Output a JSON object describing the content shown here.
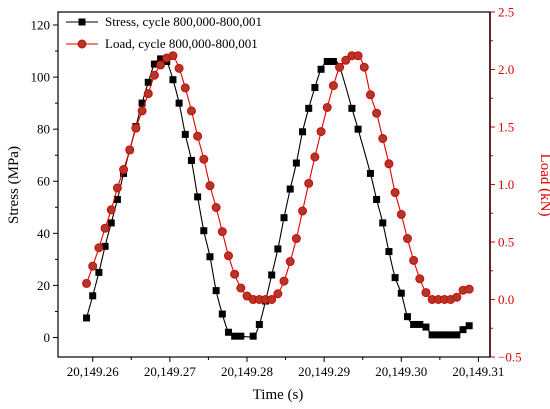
{
  "colors": {
    "stress": "#000000",
    "load": "#e00000",
    "load_marker_fill": "#a83b2b",
    "frame": "#000000"
  },
  "chart_data": {
    "type": "line",
    "xlabel": "Time (s)",
    "ylabel": "Stress (MPa)",
    "y2label": "Load (kN)",
    "xlim": [
      20149.2555,
      20149.3115
    ],
    "ylim": [
      -7.5,
      125
    ],
    "y2lim": [
      -0.5,
      2.5
    ],
    "x_ticks": [
      20149.26,
      20149.27,
      20149.28,
      20149.29,
      20149.3,
      20149.31
    ],
    "x_tick_labels": [
      "20,149.26",
      "20,149.27",
      "20,149.28",
      "20,149.29",
      "20,149.30",
      "20,149.31"
    ],
    "y_ticks": [
      0,
      20,
      40,
      60,
      80,
      100,
      120
    ],
    "y_tick_labels": [
      "0",
      "20",
      "40",
      "60",
      "80",
      "100",
      "120"
    ],
    "y2_ticks": [
      -0.5,
      0.0,
      0.5,
      1.0,
      1.5,
      2.0,
      2.5
    ],
    "y2_tick_labels": [
      "−0.5",
      "0.0",
      "0.5",
      "1.0",
      "1.5",
      "2.0",
      "2.5"
    ],
    "legend_position": "top-left",
    "grid": false,
    "series": [
      {
        "name": "Stress, cycle 800,000-800,001",
        "axis": "left",
        "marker": "square",
        "x": [
          20149.2592,
          20149.26,
          20149.2608,
          20149.2616,
          20149.2624,
          20149.2632,
          20149.264,
          20149.2648,
          20149.2656,
          20149.2664,
          20149.2672,
          20149.268,
          20149.2688,
          20149.2696,
          20149.2704,
          20149.2712,
          20149.272,
          20149.2728,
          20149.2736,
          20149.2744,
          20149.2752,
          20149.276,
          20149.2768,
          20149.2776,
          20149.2784,
          20149.2792,
          20149.2808,
          20149.2816,
          20149.2824,
          20149.2832,
          20149.284,
          20149.2848,
          20149.2856,
          20149.2864,
          20149.2872,
          20149.288,
          20149.2888,
          20149.2896,
          20149.2904,
          20149.2912,
          20149.292,
          20149.2936,
          20149.2944,
          20149.296,
          20149.2968,
          20149.2976,
          20149.2984,
          20149.2992,
          20149.3,
          20149.3008,
          20149.3016,
          20149.3024,
          20149.3032,
          20149.304,
          20149.3048,
          20149.3056,
          20149.3064,
          20149.3072,
          20149.308,
          20149.3088
        ],
        "values": [
          7.5,
          16,
          25,
          35,
          44,
          53,
          63,
          72,
          81,
          90,
          98,
          105,
          107,
          106,
          99,
          90,
          78,
          68,
          54,
          41,
          31,
          18,
          9,
          2,
          0.5,
          0.5,
          0.5,
          5,
          14,
          24,
          34,
          46,
          57,
          67,
          79,
          88,
          96,
          103,
          106,
          106,
          104,
          88,
          80,
          63,
          53,
          44,
          33,
          23,
          17,
          8,
          5,
          5,
          4,
          1,
          1,
          1,
          1,
          1,
          3,
          4.5
        ]
      },
      {
        "name": "Load, cycle 800,000-800,001",
        "axis": "right",
        "marker": "circle",
        "x": [
          20149.2592,
          20149.26,
          20149.2608,
          20149.2616,
          20149.2624,
          20149.2632,
          20149.264,
          20149.2648,
          20149.2656,
          20149.2664,
          20149.2672,
          20149.268,
          20149.2688,
          20149.2696,
          20149.2704,
          20149.2712,
          20149.272,
          20149.2728,
          20149.2736,
          20149.2744,
          20149.2752,
          20149.276,
          20149.2768,
          20149.2776,
          20149.2784,
          20149.2792,
          20149.28,
          20149.2808,
          20149.2816,
          20149.2824,
          20149.2832,
          20149.284,
          20149.2848,
          20149.2856,
          20149.2864,
          20149.2872,
          20149.288,
          20149.2888,
          20149.2896,
          20149.2904,
          20149.2912,
          20149.292,
          20149.2928,
          20149.2936,
          20149.2944,
          20149.2952,
          20149.296,
          20149.2968,
          20149.2976,
          20149.2984,
          20149.2992,
          20149.3,
          20149.3008,
          20149.3016,
          20149.3024,
          20149.3032,
          20149.304,
          20149.3048,
          20149.3056,
          20149.3064,
          20149.3072,
          20149.308,
          20149.3088
        ],
        "values": [
          0.14,
          0.29,
          0.45,
          0.62,
          0.78,
          0.97,
          1.13,
          1.3,
          1.49,
          1.64,
          1.79,
          1.95,
          2.04,
          2.1,
          2.12,
          2.01,
          1.84,
          1.64,
          1.42,
          1.22,
          0.99,
          0.8,
          0.59,
          0.38,
          0.22,
          0.1,
          0.03,
          0.0,
          0.0,
          0.0,
          0.0,
          0.05,
          0.16,
          0.33,
          0.53,
          0.77,
          1.01,
          1.24,
          1.46,
          1.67,
          1.86,
          2.02,
          2.08,
          2.12,
          2.12,
          2.02,
          1.78,
          1.62,
          1.4,
          1.18,
          0.93,
          0.74,
          0.53,
          0.34,
          0.18,
          0.06,
          0.0,
          0.0,
          0.0,
          0.0,
          0.02,
          0.08,
          0.09
        ]
      }
    ]
  }
}
